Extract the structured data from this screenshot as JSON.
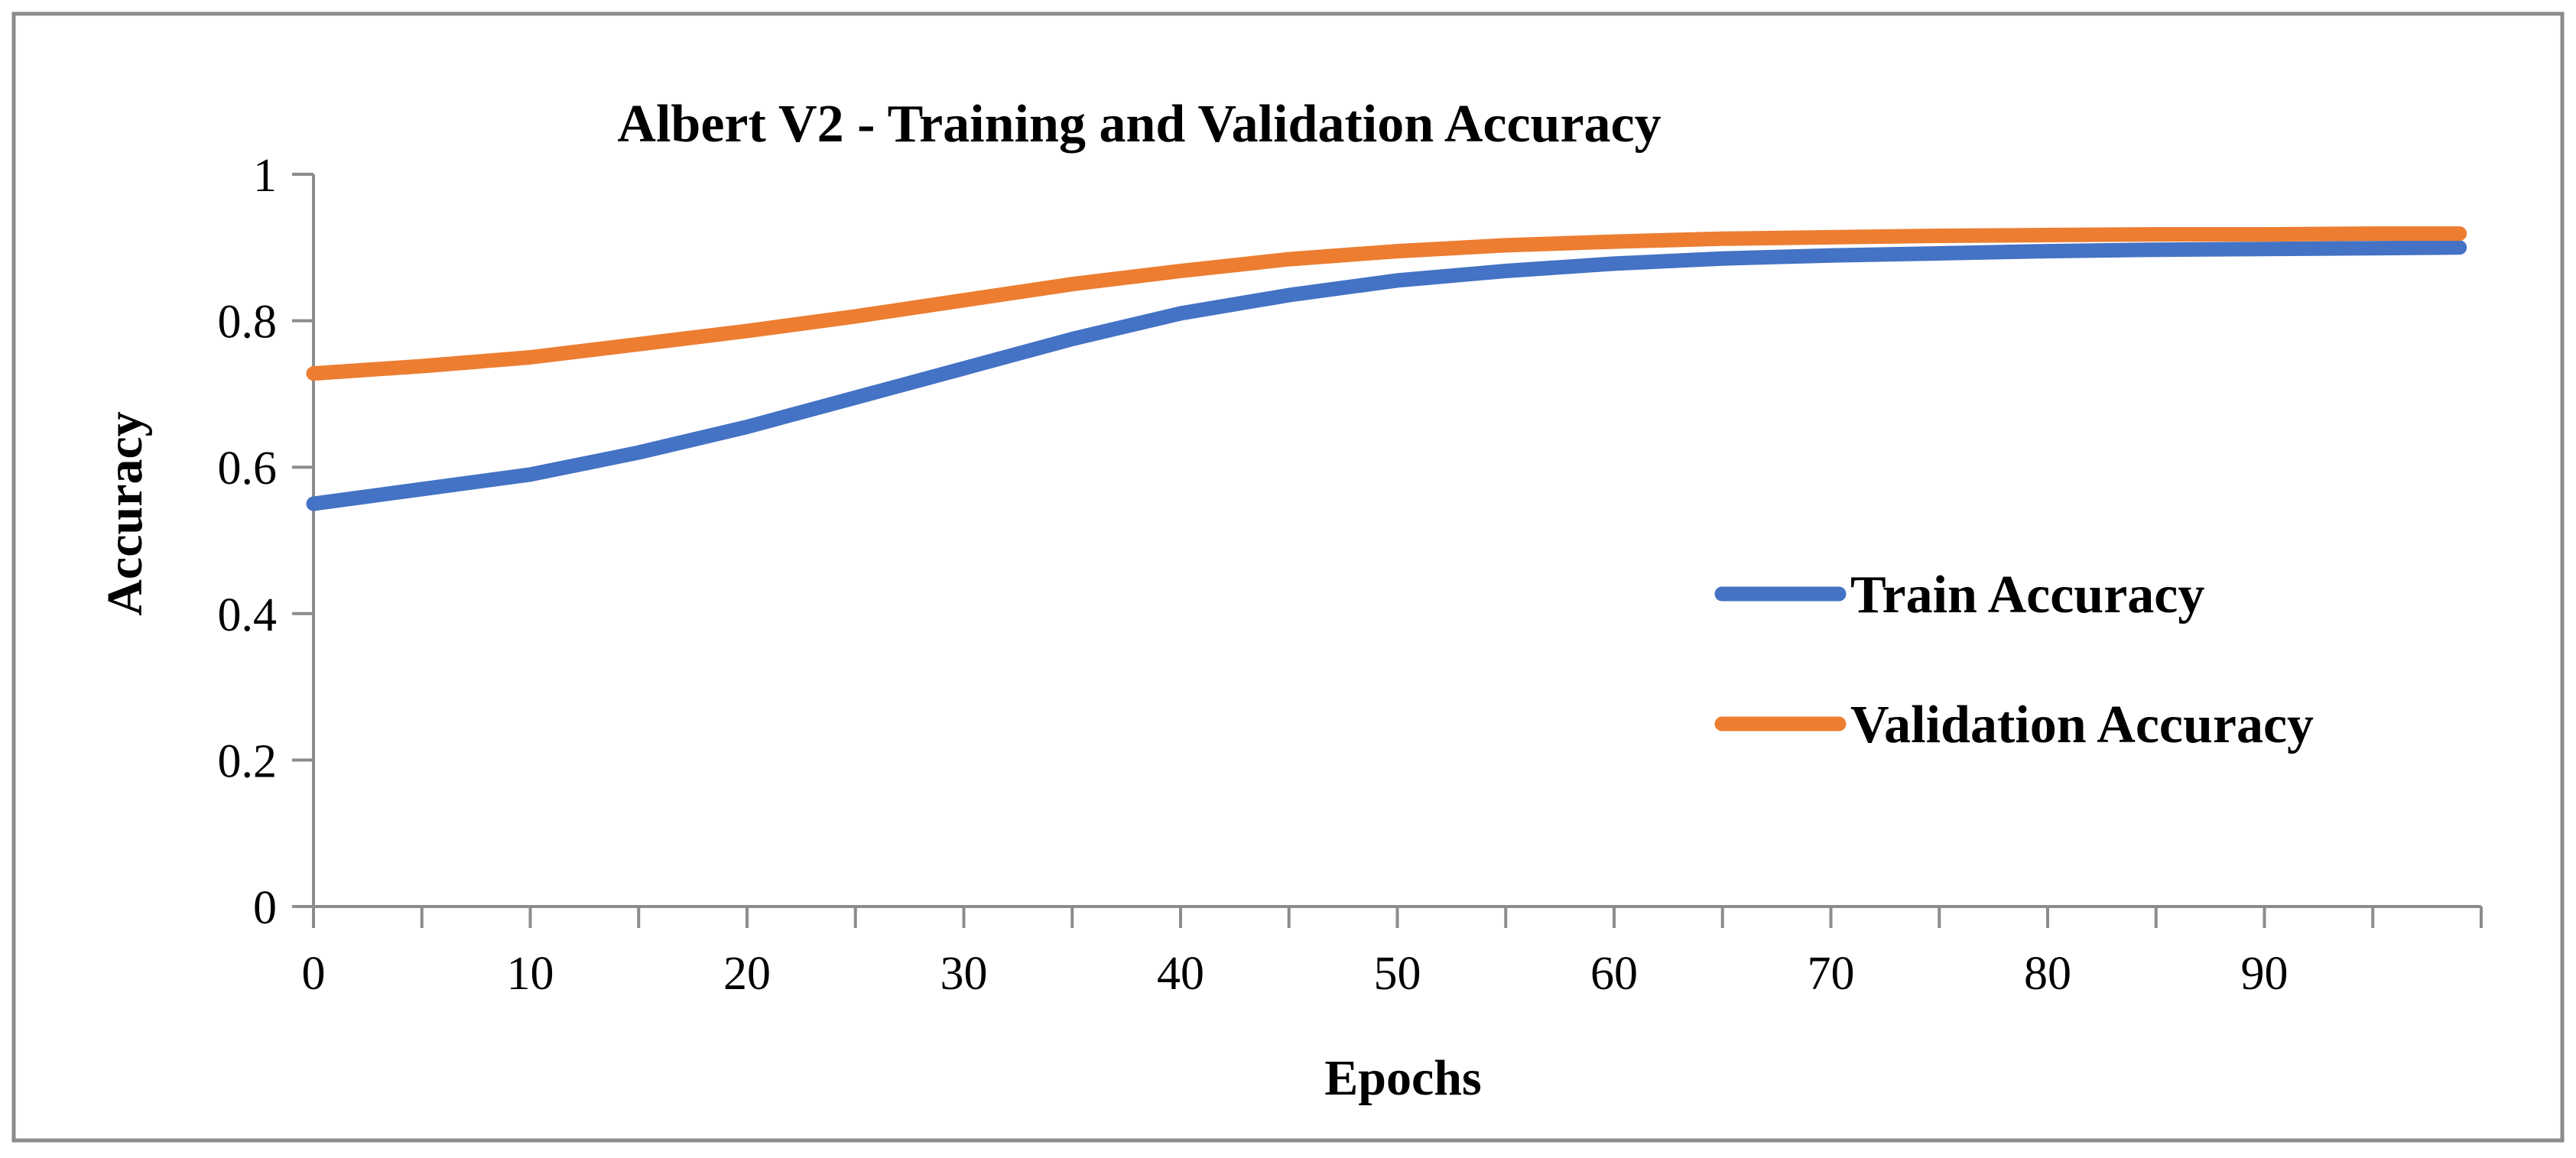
{
  "chart_data": {
    "type": "line",
    "title": "Albert V2 - Training and Validation Accuracy",
    "xlabel": "Epochs",
    "ylabel": "Accuracy",
    "xlim": [
      0,
      100
    ],
    "ylim": [
      0,
      1
    ],
    "x_ticks": [
      0,
      10,
      20,
      30,
      40,
      50,
      60,
      70,
      80,
      90
    ],
    "x_tick_labels": [
      "0",
      "10",
      "20",
      "30",
      "40",
      "50",
      "60",
      "70",
      "80",
      "90"
    ],
    "y_ticks": [
      0,
      0.2,
      0.4,
      0.6,
      0.8,
      1
    ],
    "y_tick_labels": [
      "0",
      "0.2",
      "0.4",
      "0.6",
      "0.8",
      "1"
    ],
    "grid": false,
    "legend_position": "center-right",
    "x": [
      0,
      5,
      10,
      15,
      20,
      25,
      30,
      35,
      40,
      45,
      50,
      55,
      60,
      65,
      70,
      75,
      80,
      85,
      90,
      95,
      99
    ],
    "series": [
      {
        "name": "Train Accuracy",
        "color": "#4472C4",
        "values": [
          0.55,
          0.57,
          0.59,
          0.62,
          0.655,
          0.695,
          0.735,
          0.775,
          0.81,
          0.835,
          0.855,
          0.868,
          0.878,
          0.885,
          0.889,
          0.892,
          0.895,
          0.897,
          0.898,
          0.899,
          0.9
        ]
      },
      {
        "name": "Validation Accuracy",
        "color": "#ED7D31",
        "values": [
          0.728,
          0.738,
          0.75,
          0.768,
          0.786,
          0.806,
          0.828,
          0.85,
          0.868,
          0.884,
          0.895,
          0.903,
          0.908,
          0.912,
          0.914,
          0.916,
          0.917,
          0.918,
          0.918,
          0.919,
          0.919
        ]
      }
    ]
  }
}
